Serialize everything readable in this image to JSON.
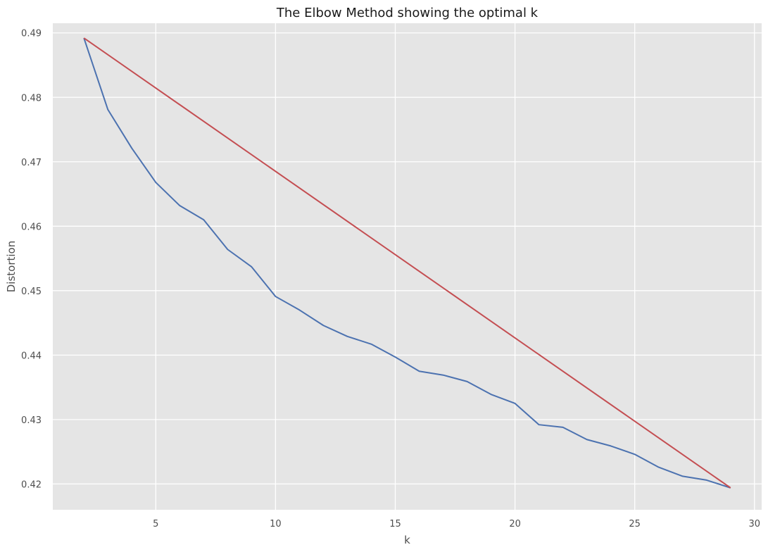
{
  "chart_data": {
    "type": "line",
    "title": "The Elbow Method showing the optimal k",
    "xlabel": "k",
    "ylabel": "Distortion",
    "xlim": [
      0.7,
      30.3
    ],
    "ylim": [
      0.416,
      0.4915
    ],
    "xticks": [
      5,
      10,
      15,
      20,
      25,
      30
    ],
    "yticks": [
      0.42,
      0.43,
      0.44,
      0.45,
      0.46,
      0.47,
      0.48,
      0.49
    ],
    "ytick_labels": [
      "0.42",
      "0.43",
      "0.44",
      "0.45",
      "0.46",
      "0.47",
      "0.48",
      "0.49"
    ],
    "xtick_labels": [
      "5",
      "10",
      "15",
      "20",
      "25",
      "30"
    ],
    "grid": true,
    "background_color": "#e5e5e5",
    "grid_color": "#ffffff",
    "series": [
      {
        "color": "#4c72b0",
        "x": [
          2,
          3,
          4,
          5,
          6,
          7,
          8,
          9,
          10,
          11,
          12,
          13,
          14,
          15,
          16,
          17,
          18,
          19,
          20,
          21,
          22,
          23,
          24,
          25,
          26,
          27,
          28,
          29
        ],
        "y": [
          0.4892,
          0.4781,
          0.4721,
          0.4668,
          0.4632,
          0.461,
          0.4564,
          0.4537,
          0.4491,
          0.447,
          0.4446,
          0.4429,
          0.4417,
          0.4397,
          0.4375,
          0.4369,
          0.4359,
          0.4339,
          0.4325,
          0.4292,
          0.4288,
          0.4269,
          0.4259,
          0.4246,
          0.4226,
          0.4212,
          0.4206,
          0.4194
        ]
      },
      {
        "color": "#c44e52",
        "x": [
          2,
          29
        ],
        "y": [
          0.4892,
          0.4194
        ]
      }
    ]
  }
}
